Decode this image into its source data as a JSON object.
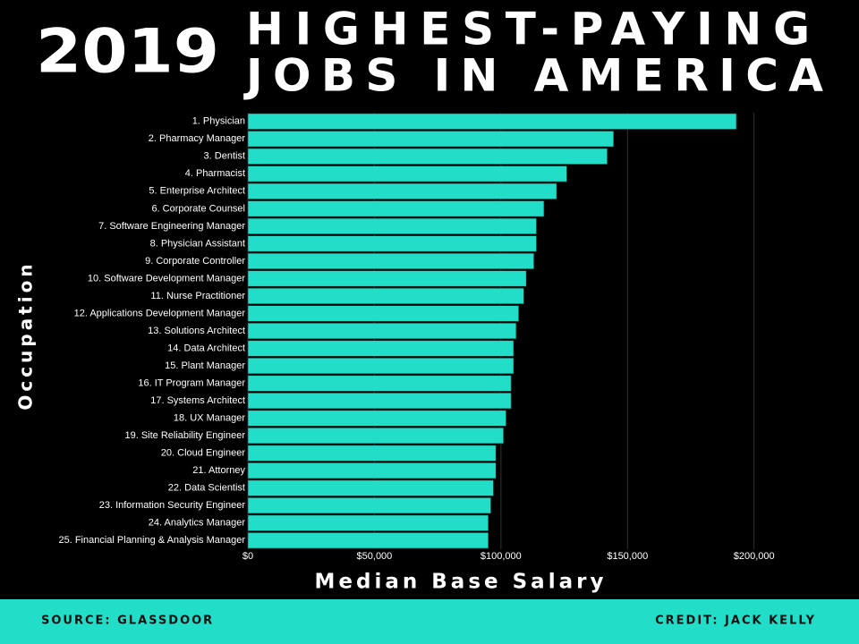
{
  "chart_data": {
    "type": "bar",
    "orientation": "horizontal",
    "title_year": "2019",
    "title_lines": [
      "HIGHEST-PAYING",
      "JOBS IN AMERICA"
    ],
    "x_label": "Median Base Salary",
    "y_label": "Occupation",
    "categories": [
      "1. Physician",
      "2. Pharmacy Manager",
      "3. Dentist",
      "4. Pharmacist",
      "5. Enterprise Architect",
      "6. Corporate Counsel",
      "7. Software Engineering Manager",
      "8. Physician Assistant",
      "9. Corporate Controller",
      "10. Software Development Manager",
      "11. Nurse Practitioner",
      "12. Applications Development Manager",
      "13. Solutions Architect",
      "14. Data Architect",
      "15. Plant Manager",
      "16. IT Program Manager",
      "17. Systems Architect",
      "18. UX Manager",
      "19. Site Reliability Engineer",
      "20. Cloud Engineer",
      "21. Attorney",
      "22. Data Scientist",
      "23. Information Security Engineer",
      "24. Analytics Manager",
      "25. Financial Planning & Analysis Manager"
    ],
    "values": [
      193000,
      144500,
      142000,
      126000,
      122000,
      117000,
      114000,
      114000,
      113000,
      110000,
      109000,
      107000,
      106000,
      105000,
      105000,
      104000,
      104000,
      102000,
      101000,
      98000,
      98000,
      97000,
      96000,
      95000,
      95000
    ],
    "color": "#22ddc8",
    "xlim": [
      0,
      210000
    ],
    "xticks": [
      {
        "value": 0,
        "label": "$0"
      },
      {
        "value": 50000,
        "label": "$50,000"
      },
      {
        "value": 100000,
        "label": "$100,000"
      },
      {
        "value": 150000,
        "label": "$150,000"
      },
      {
        "value": 200000,
        "label": "$200,000"
      }
    ],
    "grid": true,
    "footer": {
      "source": "SOURCE: GLASSDOOR",
      "credit": "CREDIT: JACK KELLY"
    }
  }
}
